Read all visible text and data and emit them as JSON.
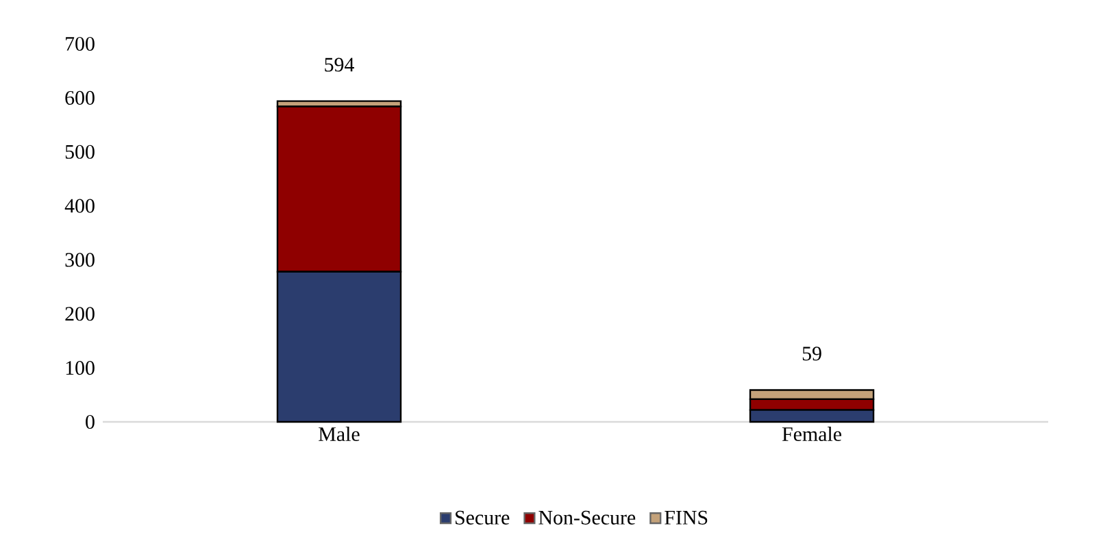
{
  "chart_data": {
    "type": "bar",
    "stacked": true,
    "categories": [
      "Male",
      "Female"
    ],
    "series": [
      {
        "name": "Secure",
        "color": "#2b3d6e",
        "values": [
          278,
          22
        ]
      },
      {
        "name": "Non-Secure",
        "color": "#8f0000",
        "values": [
          306,
          20
        ]
      },
      {
        "name": "FINS",
        "color": "#c4a27a",
        "values": [
          10,
          17
        ]
      }
    ],
    "totals": [
      "594",
      "59"
    ],
    "ylim": [
      0,
      700
    ],
    "yticks": [
      0,
      100,
      200,
      300,
      400,
      500,
      600,
      700
    ],
    "grid": false,
    "legend": "bottom"
  }
}
